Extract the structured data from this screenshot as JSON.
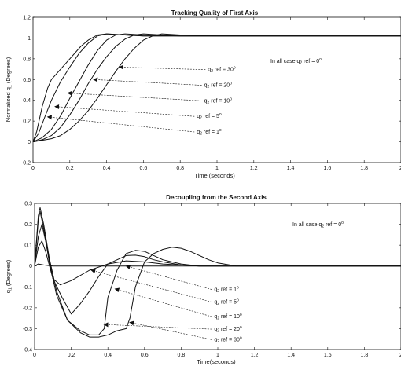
{
  "chart_data": [
    {
      "type": "line",
      "title": "Tracking Quality of First Axis",
      "xlabel": "Time (seconds)",
      "ylabel": "Normalized q",
      "ylabel_sub": "1",
      "ylabel_suffix": " (Degrees)",
      "xlim": [
        0,
        2
      ],
      "ylim": [
        -0.2,
        1.2
      ],
      "xticks": [
        "0",
        "0.2",
        "0.4",
        "0.6",
        "0.8",
        "1",
        "1.2",
        "1.4",
        "1.6",
        "1.8",
        "2"
      ],
      "yticks": [
        "-0.2",
        "0",
        "0.2",
        "0.4",
        "0.6",
        "0.8",
        "1",
        "1.2"
      ],
      "note": {
        "pre": "In all case q",
        "sub": "2",
        "post": " ref = 0",
        "sup": "o"
      },
      "series": [
        {
          "name": "q2 ref = 1°",
          "label_ref": "1",
          "x": [
            0,
            0.02,
            0.05,
            0.08,
            0.1,
            0.14,
            0.2,
            0.26,
            0.3,
            0.35,
            0.4,
            0.5,
            0.6,
            0.8,
            1,
            2
          ],
          "y": [
            0,
            0.1,
            0.34,
            0.52,
            0.6,
            0.68,
            0.8,
            0.92,
            0.98,
            1.03,
            1.04,
            1.03,
            1.02,
            1.02,
            1.02,
            1.02
          ]
        },
        {
          "name": "q2 ref = 5°",
          "label_ref": "5",
          "x": [
            0,
            0.03,
            0.06,
            0.1,
            0.15,
            0.2,
            0.25,
            0.3,
            0.35,
            0.4,
            0.5,
            0.6,
            0.8,
            1,
            2
          ],
          "y": [
            0,
            0.08,
            0.22,
            0.4,
            0.58,
            0.72,
            0.85,
            0.95,
            1.02,
            1.04,
            1.03,
            1.02,
            1.02,
            1.02,
            1.02
          ]
        },
        {
          "name": "q2 ref = 10°",
          "label_ref": "10",
          "x": [
            0,
            0.05,
            0.1,
            0.15,
            0.2,
            0.25,
            0.3,
            0.35,
            0.4,
            0.45,
            0.5,
            0.6,
            0.8,
            1,
            2
          ],
          "y": [
            0,
            0.04,
            0.12,
            0.25,
            0.42,
            0.58,
            0.74,
            0.88,
            0.98,
            1.03,
            1.04,
            1.03,
            1.02,
            1.02,
            1.02
          ]
        },
        {
          "name": "q2 ref = 20°",
          "label_ref": "20",
          "x": [
            0,
            0.05,
            0.1,
            0.15,
            0.2,
            0.25,
            0.3,
            0.35,
            0.4,
            0.45,
            0.5,
            0.55,
            0.6,
            0.7,
            0.8,
            1,
            2
          ],
          "y": [
            0,
            0.02,
            0.06,
            0.14,
            0.26,
            0.4,
            0.56,
            0.7,
            0.82,
            0.92,
            0.99,
            1.03,
            1.04,
            1.03,
            1.02,
            1.02,
            1.02
          ]
        },
        {
          "name": "q2 ref = 30°",
          "label_ref": "30",
          "x": [
            0,
            0.1,
            0.15,
            0.2,
            0.25,
            0.3,
            0.35,
            0.4,
            0.45,
            0.5,
            0.55,
            0.6,
            0.65,
            0.7,
            0.8,
            1,
            2
          ],
          "y": [
            0,
            0.03,
            0.06,
            0.12,
            0.2,
            0.3,
            0.42,
            0.55,
            0.68,
            0.8,
            0.9,
            0.98,
            1.02,
            1.04,
            1.03,
            1.02,
            1.02
          ]
        }
      ],
      "annotations": [
        {
          "ref": "30",
          "target": [
            0.47,
            0.72
          ],
          "label_at": [
            0.95,
            0.68
          ]
        },
        {
          "ref": "20",
          "target": [
            0.33,
            0.6
          ],
          "label_at": [
            0.93,
            0.53
          ]
        },
        {
          "ref": "10",
          "target": [
            0.19,
            0.47
          ],
          "label_at": [
            0.93,
            0.38
          ]
        },
        {
          "ref": "5",
          "target": [
            0.12,
            0.34
          ],
          "label_at": [
            0.89,
            0.23
          ]
        },
        {
          "ref": "1",
          "target": [
            0.08,
            0.24
          ],
          "label_at": [
            0.89,
            0.08
          ]
        }
      ]
    },
    {
      "type": "line",
      "title": "Decoupling from the Second Axis",
      "xlabel": "Time(seconds)",
      "ylabel": "q",
      "ylabel_sub": "1",
      "ylabel_suffix": " (Degrees)",
      "xlim": [
        0,
        2
      ],
      "ylim": [
        -0.4,
        0.3
      ],
      "xticks": [
        "0",
        "0.2",
        "0.4",
        "0.6",
        "0.8",
        "1",
        "1.2",
        "1.4",
        "1.6",
        "1.8",
        "2"
      ],
      "yticks": [
        "-0.4",
        "-0.3",
        "-0.2",
        "-0.1",
        "0",
        "0.1",
        "0.2",
        "0.3"
      ],
      "note": {
        "pre": "In all case q",
        "sub": "2",
        "post": " ref = 0",
        "sup": "o"
      },
      "series": [
        {
          "name": "q2 ref = 1°",
          "label_ref": "1",
          "x": [
            0,
            0.02,
            0.05,
            0.1,
            0.2,
            0.4,
            1,
            2
          ],
          "y": [
            0,
            0.01,
            0.005,
            0,
            0,
            0,
            0,
            0
          ]
        },
        {
          "name": "q2 ref = 5°",
          "label_ref": "5",
          "x": [
            0,
            0.02,
            0.04,
            0.06,
            0.1,
            0.14,
            0.2,
            0.3,
            0.4,
            0.5,
            0.6,
            0.7,
            0.8,
            0.9,
            1.0,
            2
          ],
          "y": [
            0,
            0.09,
            0.12,
            0.07,
            -0.06,
            -0.09,
            -0.07,
            -0.02,
            0.01,
            0.025,
            0.02,
            0.01,
            0.005,
            0,
            0,
            0
          ]
        },
        {
          "name": "q2 ref = 10°",
          "label_ref": "10",
          "x": [
            0,
            0.02,
            0.04,
            0.06,
            0.1,
            0.15,
            0.2,
            0.25,
            0.3,
            0.35,
            0.4,
            0.5,
            0.55,
            0.6,
            0.65,
            0.7,
            0.8,
            0.9,
            1.0,
            2
          ],
          "y": [
            0,
            0.14,
            0.2,
            0.12,
            -0.06,
            -0.15,
            -0.23,
            -0.18,
            -0.12,
            -0.05,
            0.01,
            0.05,
            0.052,
            0.045,
            0.03,
            0.02,
            0.005,
            0,
            0,
            0
          ]
        },
        {
          "name": "q2 ref = 20°",
          "label_ref": "20",
          "x": [
            0,
            0.02,
            0.03,
            0.05,
            0.08,
            0.12,
            0.18,
            0.25,
            0.3,
            0.35,
            0.38,
            0.4,
            0.45,
            0.5,
            0.55,
            0.6,
            0.65,
            0.7,
            0.8,
            0.9,
            1.0,
            2
          ],
          "y": [
            0,
            0.22,
            0.26,
            0.18,
            0.02,
            -0.14,
            -0.26,
            -0.31,
            -0.33,
            -0.33,
            -0.3,
            -0.15,
            -0.02,
            0.06,
            0.075,
            0.07,
            0.05,
            0.03,
            0.01,
            0,
            0,
            0
          ]
        },
        {
          "name": "q2 ref = 30°",
          "label_ref": "30",
          "x": [
            0,
            0.02,
            0.03,
            0.05,
            0.08,
            0.12,
            0.18,
            0.25,
            0.3,
            0.35,
            0.4,
            0.45,
            0.5,
            0.52,
            0.55,
            0.6,
            0.65,
            0.7,
            0.75,
            0.8,
            0.85,
            0.9,
            0.95,
            1.0,
            1.1,
            2
          ],
          "y": [
            0,
            0.24,
            0.28,
            0.2,
            0.04,
            -0.12,
            -0.26,
            -0.32,
            -0.34,
            -0.34,
            -0.33,
            -0.31,
            -0.3,
            -0.25,
            -0.1,
            0.02,
            0.06,
            0.08,
            0.09,
            0.085,
            0.07,
            0.05,
            0.03,
            0.015,
            0,
            0
          ]
        }
      ],
      "annotations": [
        {
          "ref": "1",
          "target": [
            0.5,
            0.0
          ],
          "label_at": [
            0.98,
            -0.12
          ]
        },
        {
          "ref": "5",
          "target": [
            0.31,
            -0.02
          ],
          "label_at": [
            0.98,
            -0.18
          ]
        },
        {
          "ref": "10",
          "target": [
            0.44,
            -0.11
          ],
          "label_at": [
            0.98,
            -0.25
          ]
        },
        {
          "ref": "20",
          "target": [
            0.38,
            -0.28
          ],
          "label_at": [
            0.98,
            -0.31
          ]
        },
        {
          "ref": "30",
          "target": [
            0.52,
            -0.27
          ],
          "label_at": [
            0.98,
            -0.36
          ]
        }
      ]
    }
  ]
}
